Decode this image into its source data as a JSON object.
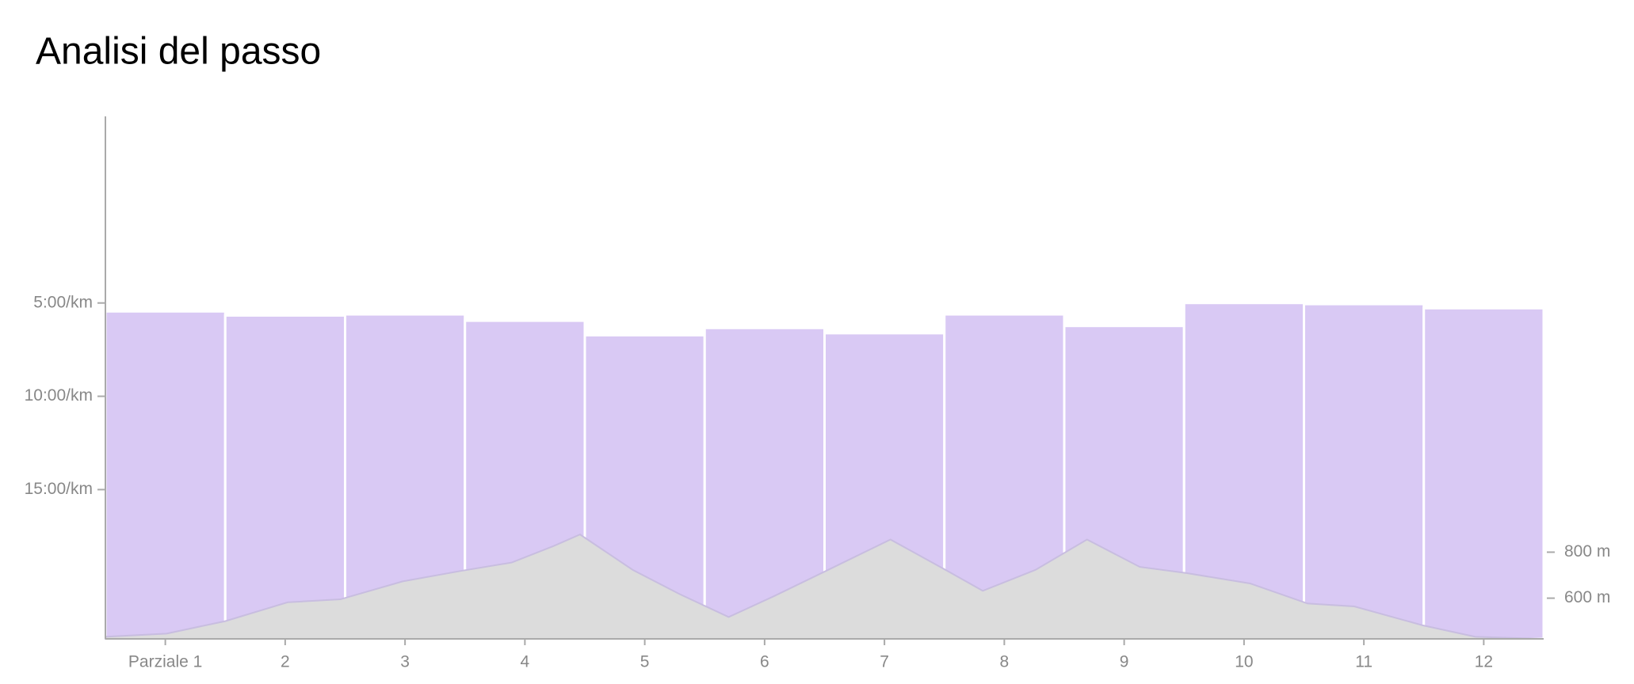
{
  "chart_data": {
    "type": "bar",
    "title": "Analisi del passo",
    "categories": [
      "Parziale 1",
      "2",
      "3",
      "4",
      "5",
      "6",
      "7",
      "8",
      "9",
      "10",
      "11",
      "12"
    ],
    "values": [
      5.45,
      5.67,
      5.61,
      5.95,
      6.73,
      6.34,
      6.62,
      5.61,
      6.23,
      5.0,
      5.06,
      5.28
    ],
    "color": "#d9c9f4",
    "ylim": [
      23,
      -5
    ],
    "yticks": [
      {
        "value": 5,
        "label": "5:00/km"
      },
      {
        "value": 10,
        "label": "10:00/km"
      },
      {
        "value": 15,
        "label": "15:00/km"
      }
    ],
    "elevation": {
      "type": "area",
      "axis": "y2",
      "color": "#dcdcdc",
      "x": [
        0,
        0.51,
        1.0,
        1.52,
        1.96,
        2.48,
        2.96,
        3.39,
        3.74,
        3.96,
        4.4,
        4.79,
        5.2,
        5.58,
        6.01,
        6.55,
        7.01,
        7.32,
        7.76,
        8.19,
        8.63,
        9.02,
        9.55,
        10.03,
        10.42,
        10.99,
        11.43,
        12
      ],
      "values": [
        432,
        446,
        500,
        582,
        595,
        673,
        718,
        755,
        827,
        877,
        723,
        618,
        518,
        609,
        718,
        855,
        723,
        632,
        723,
        855,
        736,
        709,
        664,
        577,
        564,
        482,
        432,
        423
      ]
    },
    "xlim": [
      0,
      12
    ],
    "y2lim": [
      423,
      2695
    ],
    "y2ticks": [
      {
        "value": 600,
        "label": "600 m"
      },
      {
        "value": 800,
        "label": "800 m"
      }
    ]
  }
}
